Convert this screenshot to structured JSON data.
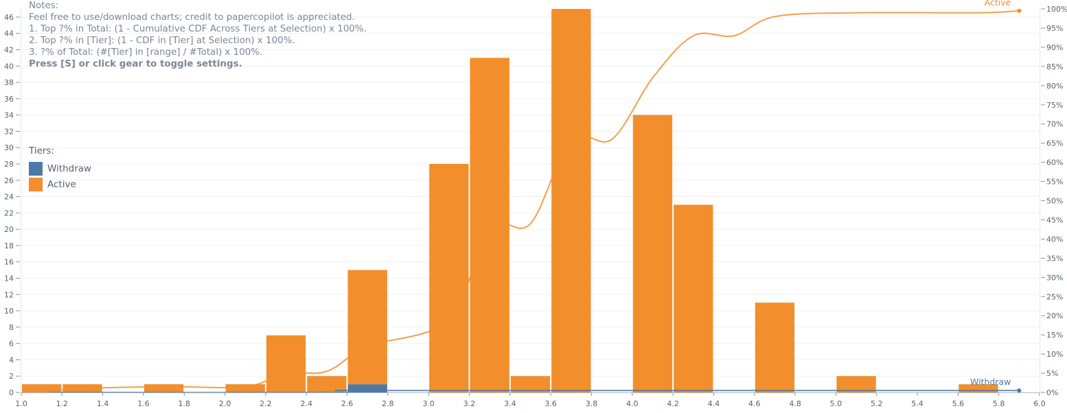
{
  "notes": {
    "heading": "Notes:",
    "line1": "Feel free to use/download charts; credit to papercopilot is appreciated.",
    "line2": "1. Top ?% in Total: (1 - Cumulative CDF Across Tiers at Selection) x 100%.",
    "line3": "2. Top ?% in [Tier]: (1 - CDF in [Tier] at Selection) x 100%.",
    "line4": "3. ?% of Total: (#[Tier] in [range] / #Total) x 100%.",
    "line5": "Press [S] or click gear to toggle settings."
  },
  "legend": {
    "title": "Tiers:",
    "items": [
      {
        "label": "Withdraw",
        "color": "#4e79a7"
      },
      {
        "label": "Active",
        "color": "#f28e2b"
      }
    ]
  },
  "chart_data": {
    "type": "bar",
    "stacked": true,
    "bin_width": 0.2,
    "x_range": [
      1.0,
      6.0
    ],
    "y_left_range": [
      0,
      47
    ],
    "y_right_range": [
      0,
      100
    ],
    "x_ticks": [
      "1.0",
      "1.2",
      "1.4",
      "1.6",
      "1.8",
      "2.0",
      "2.2",
      "2.4",
      "2.6",
      "2.8",
      "3.0",
      "3.2",
      "3.4",
      "3.6",
      "3.8",
      "4.0",
      "4.2",
      "4.4",
      "4.6",
      "4.8",
      "5.0",
      "5.2",
      "5.4",
      "5.6",
      "5.8",
      "6.0"
    ],
    "y_left_ticks": [
      "0",
      "2",
      "4",
      "6",
      "8",
      "10",
      "12",
      "14",
      "16",
      "18",
      "20",
      "22",
      "24",
      "26",
      "28",
      "30",
      "32",
      "34",
      "36",
      "38",
      "40",
      "42",
      "44",
      "46"
    ],
    "y_right_ticks": [
      "0%",
      "5%",
      "10%",
      "15%",
      "20%",
      "25%",
      "30%",
      "35%",
      "40%",
      "45%",
      "50%",
      "55%",
      "60%",
      "65%",
      "70%",
      "75%",
      "80%",
      "85%",
      "90%",
      "95%",
      "100%"
    ],
    "bins": [
      1.0,
      1.2,
      1.6,
      2.0,
      2.2,
      2.4,
      2.6,
      3.0,
      3.2,
      3.4,
      3.6,
      4.0,
      4.2,
      4.6,
      5.0,
      5.6
    ],
    "series": [
      {
        "name": "Withdraw",
        "color": "#4e79a7",
        "values": [
          0,
          0,
          0,
          0,
          0,
          0,
          1,
          0,
          0,
          0,
          0,
          0,
          0,
          0,
          0,
          0
        ]
      },
      {
        "name": "Active",
        "color": "#f28e2b",
        "values": [
          1,
          1,
          1,
          1,
          7,
          2,
          14,
          28,
          41,
          2,
          47,
          34,
          23,
          11,
          2,
          1
        ]
      }
    ],
    "cdf_lines": [
      {
        "name": "Withdraw",
        "label": "Withdraw",
        "color": "#4e79a7",
        "x": [
          1.1,
          2.6,
          2.7,
          2.8,
          5.9
        ],
        "y": [
          0,
          0,
          0.5,
          0.5,
          0.5
        ]
      },
      {
        "name": "Active",
        "label": "Active",
        "color": "#f28e2b",
        "x": [
          1.1,
          1.3,
          1.7,
          2.1,
          2.3,
          2.5,
          2.7,
          3.1,
          3.3,
          3.5,
          3.7,
          3.9,
          4.1,
          4.3,
          4.5,
          4.7,
          5.1,
          5.7,
          5.9
        ],
        "y": [
          0,
          1,
          1.5,
          1.5,
          5,
          5.5,
          12,
          19,
          43,
          44,
          66,
          66,
          82,
          93,
          93,
          98,
          99,
          99,
          99.5
        ]
      }
    ]
  }
}
